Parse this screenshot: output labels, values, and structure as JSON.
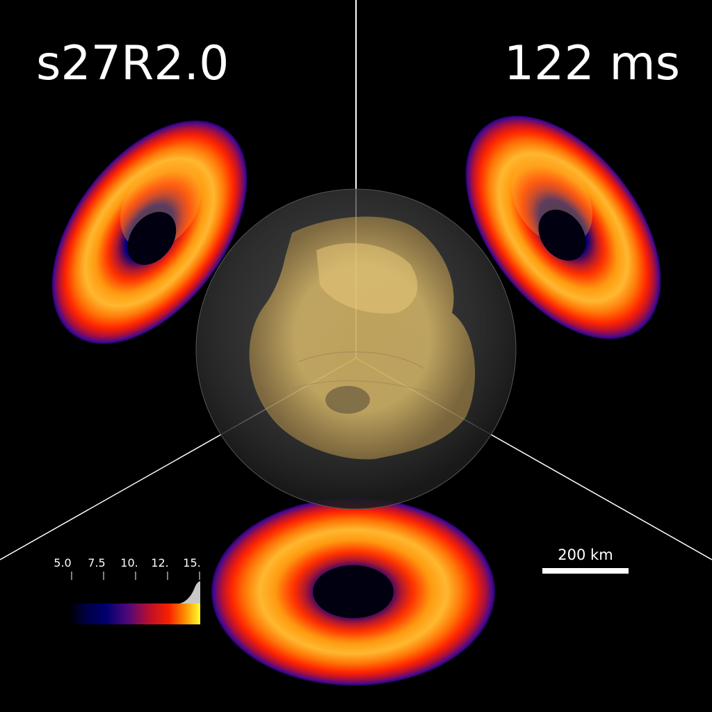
{
  "labels": {
    "model": "s27R2.0",
    "time": "122 ms",
    "scale_bar": "200 km"
  },
  "colorbar": {
    "ticks": [
      "5.0",
      "7.5",
      "10.",
      "12.",
      "15."
    ],
    "colors": [
      "#000000",
      "#000060",
      "#3a0a78",
      "#a0103a",
      "#e81e00",
      "#ff7a00",
      "#ffd000",
      "#ffff40"
    ]
  },
  "colors": {
    "background": "#000000",
    "lines": "#ffffff",
    "sphere": "#808080",
    "volume": "#e8c56a"
  }
}
